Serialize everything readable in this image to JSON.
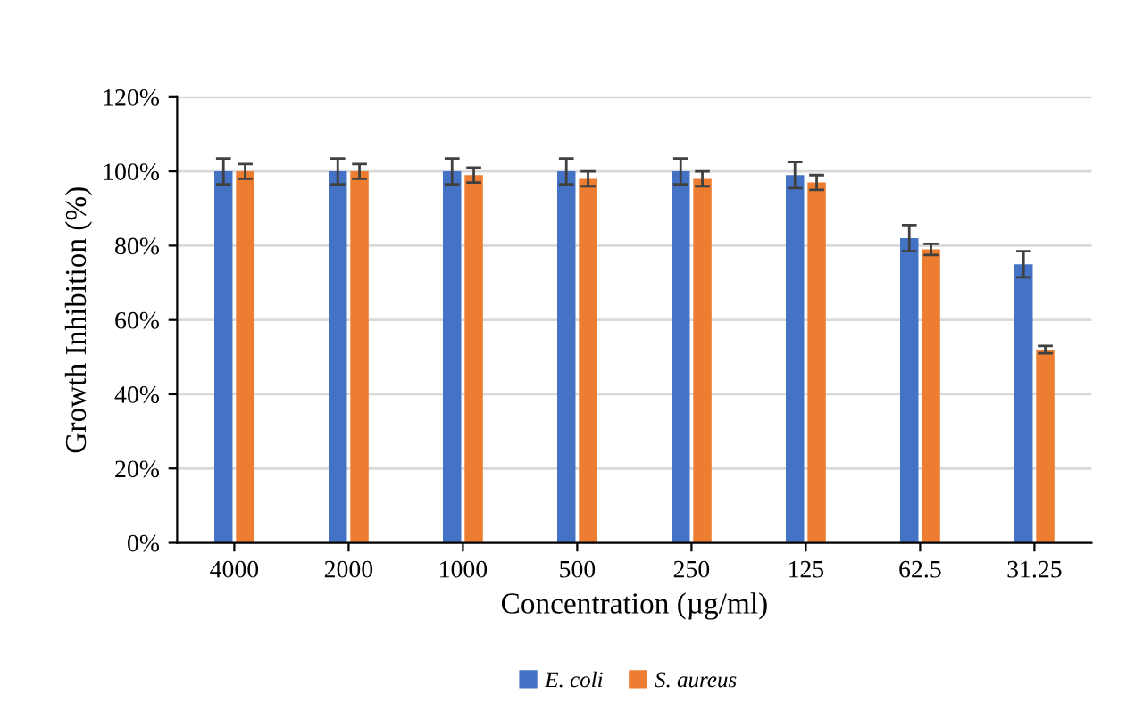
{
  "chart_data": {
    "type": "bar",
    "xlabel": "Concentration (µg/ml)",
    "ylabel": "Growth Inhibition (%)",
    "categories": [
      "4000",
      "2000",
      "1000",
      "500",
      "250",
      "125",
      "62.5",
      "31.25"
    ],
    "series": [
      {
        "name": "E. coli",
        "color": "#4472c4",
        "values": [
          100,
          100,
          100,
          100,
          100,
          99,
          82,
          75
        ],
        "errors": [
          3.5,
          3.5,
          3.5,
          3.5,
          3.5,
          3.5,
          3.5,
          3.5
        ]
      },
      {
        "name": "S. aureus",
        "color": "#ed7d31",
        "values": [
          100,
          100,
          99,
          98,
          98,
          97,
          79,
          52
        ],
        "errors": [
          2,
          2,
          2,
          2,
          2,
          2,
          1.5,
          1
        ]
      }
    ],
    "ylim": [
      0,
      120
    ],
    "yticks": [
      {
        "value": 0,
        "label": "0%"
      },
      {
        "value": 20,
        "label": "20%"
      },
      {
        "value": 40,
        "label": "40%"
      },
      {
        "value": 60,
        "label": "60%"
      },
      {
        "value": 80,
        "label": "80%"
      },
      {
        "value": 100,
        "label": "100%"
      },
      {
        "value": 120,
        "label": "120%"
      }
    ],
    "grid": "y",
    "legend": "bottom"
  }
}
